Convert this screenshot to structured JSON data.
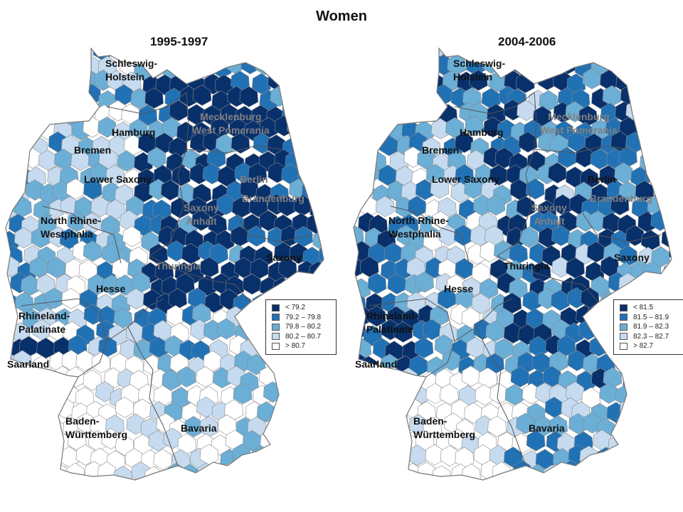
{
  "title": "Women",
  "colors": {
    "c1": "#08306b",
    "c2": "#2171b5",
    "c3": "#6baed6",
    "c4": "#c6dbef",
    "c5": "#ffffff",
    "border": "#8a8a8a"
  },
  "panels": [
    {
      "period": "1995-1997",
      "legend": [
        "< 79.2",
        "79.2 – 79.8",
        "79.8 – 80.2",
        "80.2 – 80.7",
        "> 80.7"
      ],
      "regions": {
        "schleswig_holstein": "Schleswig-\nHolstein",
        "hamburg": "Hamburg",
        "mecklenburg": "Mecklenburg\nWest Pomerania",
        "bremen": "Bremen",
        "lower_saxony": "Lower Saxony",
        "berlin": "Berlin",
        "brandenburg": "Brandenburg",
        "saxony_anhalt": "Saxony\nAnhalt",
        "nrw": "North Rhine-\nWestphalia",
        "saxony": "Saxony",
        "thuringia": "Thuringia",
        "hesse": "Hesse",
        "rhineland": "Rhineland-\nPalatinate",
        "saarland": "Saarland",
        "baden": "Baden-\nWürttemberg",
        "bavaria": "Bavaria"
      }
    },
    {
      "period": "2004-2006",
      "legend": [
        "< 81.5",
        "81.5 – 81.9",
        "81.9 – 82.3",
        "82.3 – 82.7",
        "> 82.7"
      ],
      "regions": {
        "schleswig_holstein": "Schleswig-\nHolstein",
        "hamburg": "Hamburg",
        "mecklenburg": "Mecklenburg\nWest Pomerania",
        "bremen": "Bremen",
        "lower_saxony": "Lower Saxony",
        "berlin": "Berlin",
        "brandenburg": "Brandenburg",
        "saxony_anhalt": "Saxony\nAnhalt",
        "nrw": "North Rhine-\nWestphalia",
        "saxony": "Saxony",
        "thuringia": "Thuringia",
        "hesse": "Hesse",
        "rhineland": "Rhineland-\nPalatinate",
        "saarland": "Saarland",
        "baden": "Baden-\nWürttemberg",
        "bavaria": "Bavaria"
      }
    }
  ]
}
